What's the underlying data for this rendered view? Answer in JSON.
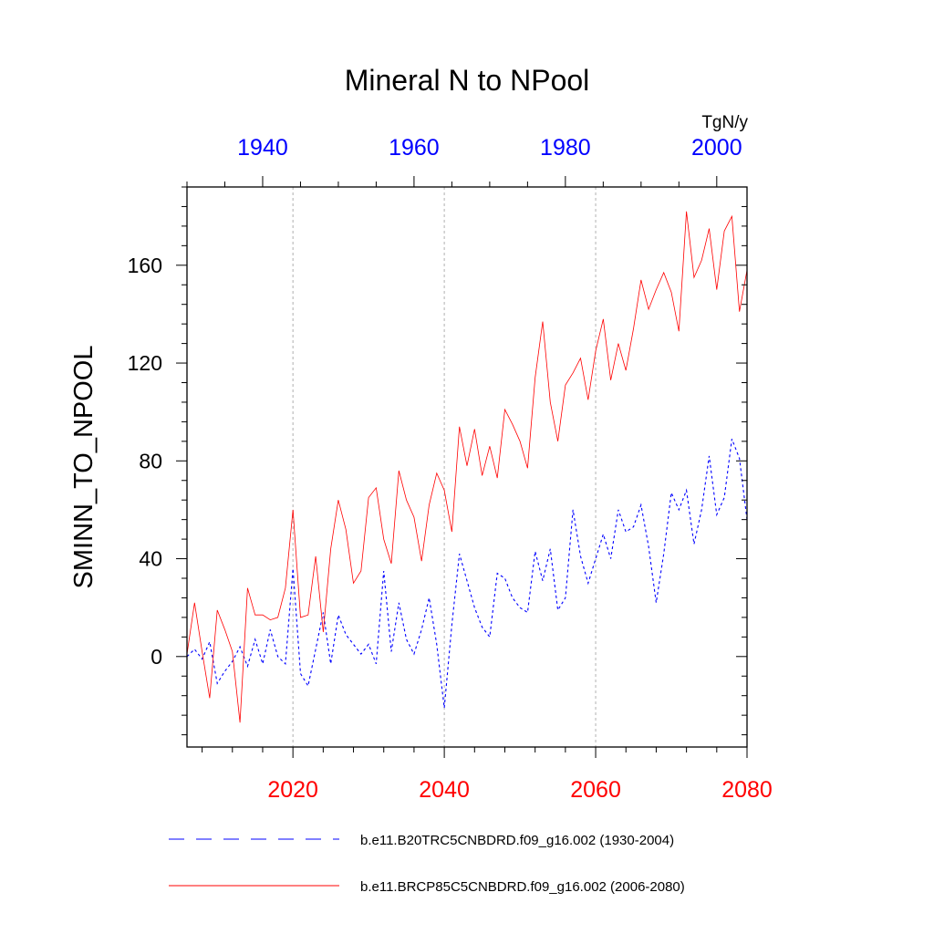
{
  "chart_data": {
    "type": "line",
    "title": "Mineral N to NPool",
    "units": "TgN/y",
    "ylabel": "SMINN_TO_NPOOL",
    "ylim": [
      -37,
      192
    ],
    "yticks": [
      0,
      40,
      80,
      120,
      160
    ],
    "top_axis": {
      "range": [
        1930,
        2004
      ],
      "ticks": [
        1940,
        1960,
        1980,
        2000
      ],
      "color": "#0000ff"
    },
    "bottom_axis": {
      "range": [
        2006,
        2080
      ],
      "ticks": [
        2020,
        2040,
        2060,
        2080
      ],
      "color": "#ff0000"
    },
    "gridlines_at_bottom_years": [
      2020,
      2040,
      2060
    ],
    "series": [
      {
        "name": "b.e11.B20TRC5CNBDRD.f09_g16.002 (1930-2004)",
        "axis": "top",
        "color": "#0000ff",
        "dash": "dashed",
        "x_start": 1930,
        "values": [
          0,
          3,
          -1,
          6,
          -11,
          -6,
          -2,
          4,
          -4,
          7,
          -3,
          11,
          0,
          -3,
          36,
          -7,
          -12,
          3,
          18,
          -3,
          17,
          9,
          5,
          1,
          5,
          -3,
          35,
          2,
          22,
          7,
          1,
          11,
          24,
          5,
          -21,
          13,
          42,
          31,
          20,
          12,
          8,
          34,
          32,
          24,
          20,
          18,
          43,
          31,
          44,
          19,
          24,
          60,
          41,
          30,
          40,
          50,
          40,
          60,
          51,
          53,
          62,
          45,
          22,
          42,
          67,
          60,
          68,
          46,
          60,
          82,
          58,
          65,
          89,
          81,
          56
        ]
      },
      {
        "name": "b.e11.BRCP85C5CNBDRD.f09_g16.002 (2006-2080)",
        "axis": "bottom",
        "color": "#ff0000",
        "dash": "solid",
        "x_start": 2006,
        "values": [
          1,
          22,
          2,
          -17,
          19,
          11,
          2,
          -27,
          28,
          17,
          17,
          15,
          16,
          28,
          60,
          16,
          17,
          41,
          10,
          44,
          64,
          52,
          30,
          35,
          65,
          69,
          48,
          38,
          76,
          64,
          57,
          39,
          62,
          75,
          68,
          51,
          94,
          78,
          93,
          74,
          86,
          73,
          101,
          95,
          88,
          77,
          114,
          137,
          104,
          88,
          111,
          116,
          122,
          105,
          125,
          138,
          113,
          128,
          117,
          134,
          154,
          142,
          150,
          157,
          149,
          133,
          182,
          155,
          162,
          175,
          150,
          174,
          180,
          141,
          158
        ]
      }
    ]
  }
}
